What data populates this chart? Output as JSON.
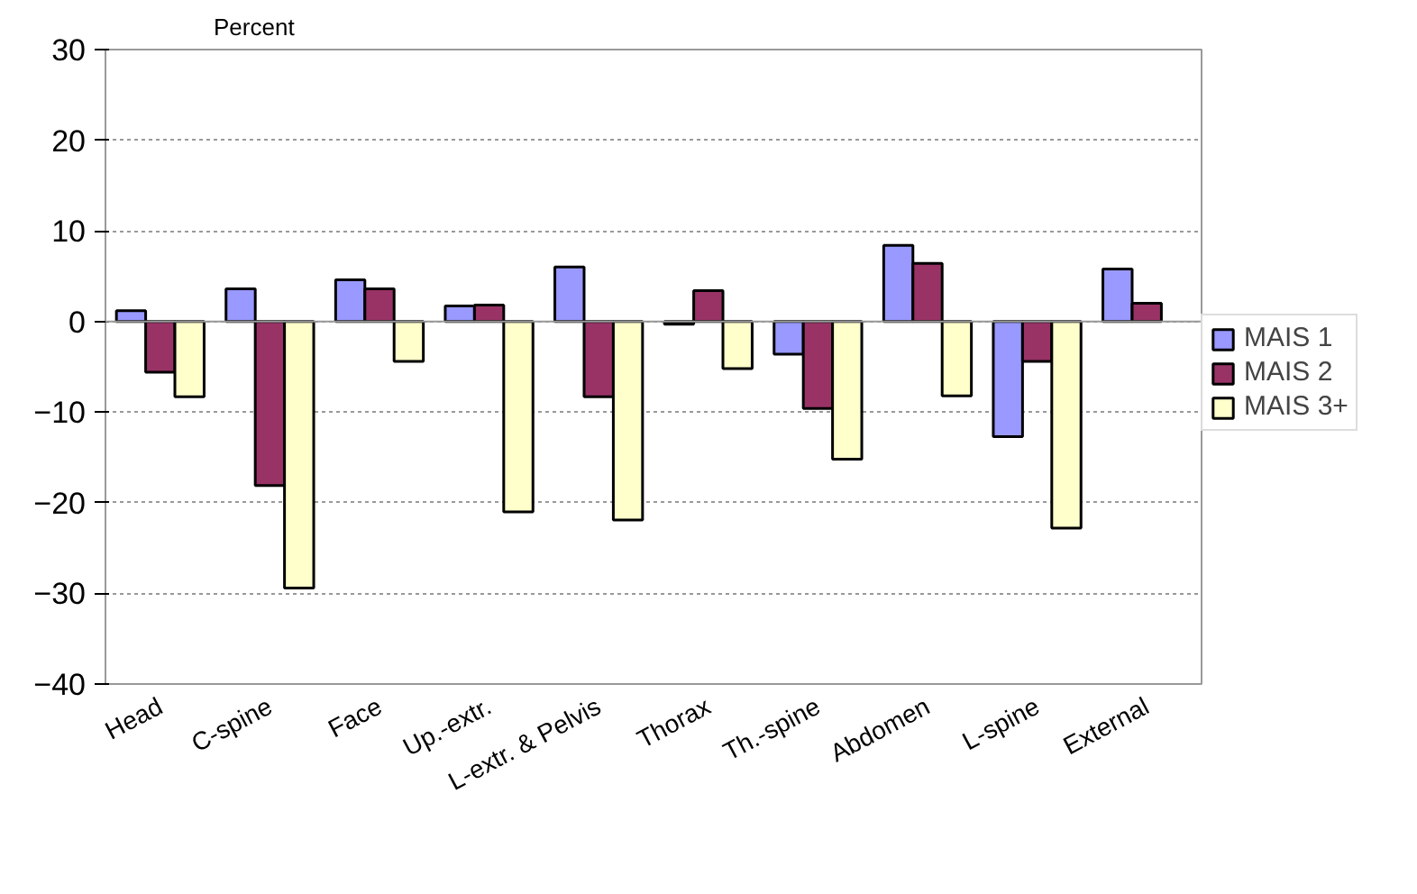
{
  "chart_data": {
    "type": "bar",
    "ylabel": "Percent",
    "categories": [
      "Head",
      "C-spine",
      "Face",
      "Up.-extr.",
      "L-extr. & Pelvis",
      "Thorax",
      "Th.-spine",
      "Abdomen",
      "L-spine",
      "External"
    ],
    "series": [
      {
        "name": "MAIS 1",
        "color": "#9999ff",
        "values": [
          1.2,
          3.6,
          4.6,
          1.7,
          6.0,
          -0.3,
          -3.6,
          8.4,
          -12.7,
          5.8
        ]
      },
      {
        "name": "MAIS 2",
        "color": "#993366",
        "values": [
          -5.6,
          -18.1,
          3.6,
          1.8,
          -8.3,
          3.4,
          -9.6,
          6.4,
          -4.4,
          2.0
        ]
      },
      {
        "name": "MAIS 3+",
        "color": "#ffffcc",
        "values": [
          -8.3,
          -29.4,
          -4.4,
          -21.0,
          -21.9,
          -5.2,
          -15.2,
          -8.2,
          -22.8,
          null
        ]
      }
    ],
    "ylim": [
      -40,
      30
    ],
    "yticks": [
      -40,
      -30,
      -20,
      -10,
      0,
      10,
      20,
      30
    ],
    "grid": "y",
    "legend": "right"
  }
}
